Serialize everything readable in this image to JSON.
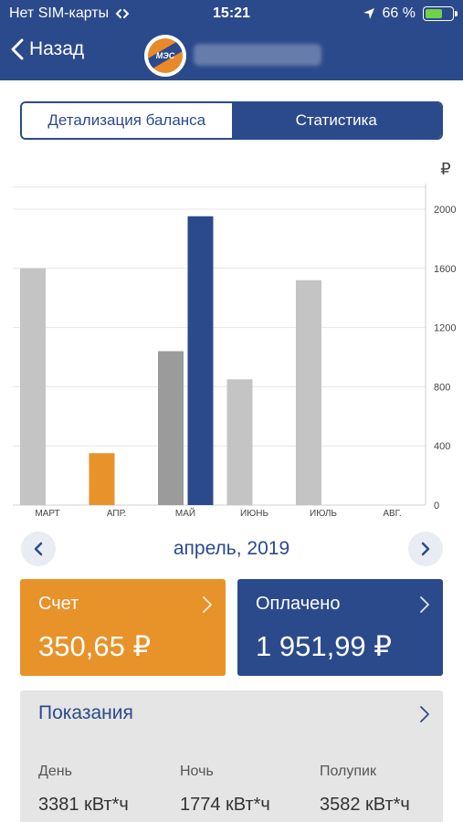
{
  "status_bar": {
    "carrier": "Нет SIM-карты",
    "time": "15:21",
    "battery": "66 %",
    "battery_level": 0.66
  },
  "nav": {
    "back_label": "Назад",
    "logo_text": "МЭС"
  },
  "tabs": [
    {
      "label": "Детализация баланса",
      "active": false
    },
    {
      "label": "Статистика",
      "active": true
    }
  ],
  "chart_data": {
    "type": "bar",
    "currency_symbol": "₽",
    "categories": [
      "МАРТ",
      "АПР.",
      "МАЙ",
      "ИЮНЬ",
      "ИЮЛЬ",
      "АВГ."
    ],
    "yticks": [
      "0",
      "400",
      "800",
      "1200",
      "1600",
      "2000"
    ],
    "ylim": [
      0,
      2200
    ],
    "grid": true,
    "series": [
      {
        "values": [
          1600,
          350.65,
          1040,
          850,
          1520,
          0
        ]
      },
      {
        "values": [
          null,
          1951.99,
          null,
          null,
          null,
          null
        ]
      }
    ],
    "colors": {
      "bill": "#c4c4c4",
      "bill_selected": "#e8922a",
      "bill_previous": "#9b9b9b",
      "paid": "#2b4a8b"
    }
  },
  "month_selector": {
    "label": "апрель, 2019"
  },
  "cards": {
    "bill": {
      "label": "Счет",
      "value": "350,65 ₽"
    },
    "paid": {
      "label": "Оплачено",
      "value": "1 951,99 ₽"
    }
  },
  "readings": {
    "title": "Показания",
    "columns": [
      {
        "label": "День",
        "value": "3381 кВт*ч"
      },
      {
        "label": "Ночь",
        "value": "1774 кВт*ч"
      },
      {
        "label": "Полупик",
        "value": "3582 кВт*ч"
      }
    ]
  },
  "colors": {
    "brand_blue": "#2b4a8b",
    "accent_orange": "#e8922a"
  }
}
